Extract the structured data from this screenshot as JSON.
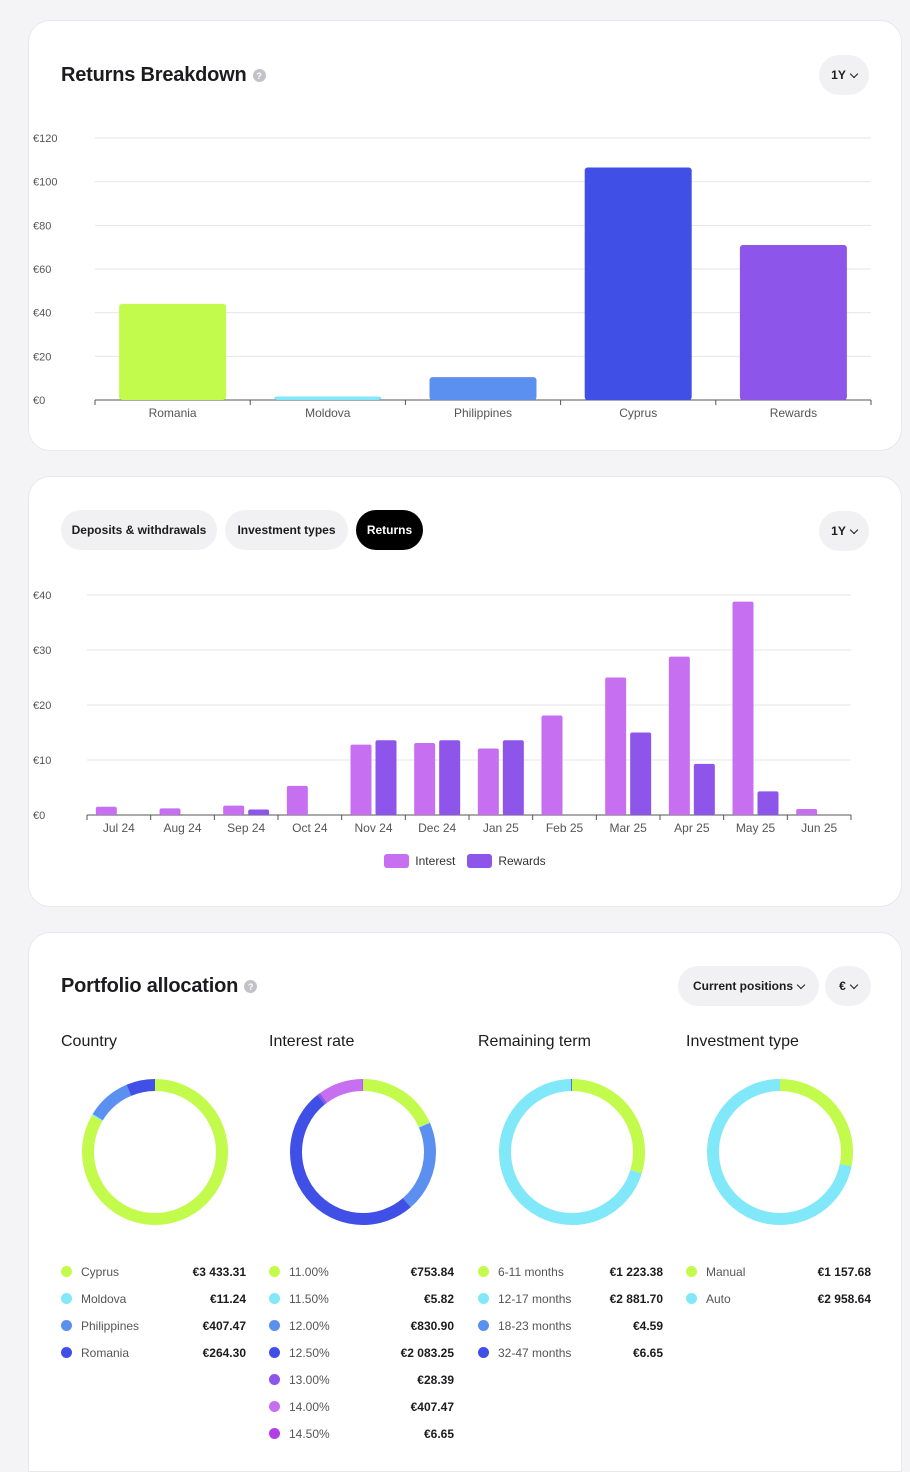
{
  "returns_breakdown": {
    "title": "Returns Breakdown",
    "help": "?",
    "period": "1Y",
    "chart_data": {
      "type": "bar",
      "categories": [
        "Romania",
        "Moldova",
        "Philippines",
        "Cyprus",
        "Rewards"
      ],
      "values": [
        44,
        1.6,
        10.5,
        106.5,
        71
      ],
      "colors": [
        "#c2fb4b",
        "#80e8f8",
        "#5b8ff0",
        "#404fe6",
        "#8d55ea"
      ],
      "yticks": [
        "€0",
        "€20",
        "€40",
        "€60",
        "€80",
        "€100",
        "€120"
      ],
      "ylim": [
        0,
        120
      ]
    }
  },
  "history": {
    "tabs": [
      "Deposits & withdrawals",
      "Investment types",
      "Returns"
    ],
    "active_tab": "Returns",
    "period": "1Y",
    "chart_data": {
      "type": "bar",
      "categories": [
        "Jul 24",
        "Aug 24",
        "Sep 24",
        "Oct 24",
        "Nov 24",
        "Dec 24",
        "Jan 25",
        "Feb 25",
        "Mar 25",
        "Apr 25",
        "May 25",
        "Jun 25"
      ],
      "series": [
        {
          "name": "Interest",
          "color": "#c66ff0",
          "values": [
            1.5,
            1.2,
            1.7,
            5.3,
            12.8,
            13.1,
            12.1,
            18.1,
            25,
            28.8,
            38.8,
            1.1
          ]
        },
        {
          "name": "Rewards",
          "color": "#8d55ea",
          "values": [
            0,
            0,
            1,
            0,
            13.6,
            13.6,
            13.6,
            0,
            15,
            9.3,
            4.3,
            0
          ]
        }
      ],
      "yticks": [
        "€0",
        "€10",
        "€20",
        "€30",
        "€40"
      ],
      "ylim": [
        0,
        40
      ]
    }
  },
  "allocation": {
    "title": "Portfolio allocation",
    "help": "?",
    "positions_label": "Current positions",
    "currency": "€",
    "columns": [
      {
        "title": "Country",
        "items": [
          {
            "label": "Cyprus",
            "value": "€3 433.31",
            "amount": 3433.31,
            "color": "#c2fb4b"
          },
          {
            "label": "Moldova",
            "value": "€11.24",
            "amount": 11.24,
            "color": "#80e8f8"
          },
          {
            "label": "Philippines",
            "value": "€407.47",
            "amount": 407.47,
            "color": "#5b8ff0"
          },
          {
            "label": "Romania",
            "value": "€264.30",
            "amount": 264.3,
            "color": "#404fe6"
          }
        ]
      },
      {
        "title": "Interest rate",
        "items": [
          {
            "label": "11.00%",
            "value": "€753.84",
            "amount": 753.84,
            "color": "#c2fb4b"
          },
          {
            "label": "11.50%",
            "value": "€5.82",
            "amount": 5.82,
            "color": "#80e8f8"
          },
          {
            "label": "12.00%",
            "value": "€830.90",
            "amount": 830.9,
            "color": "#5b8ff0"
          },
          {
            "label": "12.50%",
            "value": "€2 083.25",
            "amount": 2083.25,
            "color": "#404fe6"
          },
          {
            "label": "13.00%",
            "value": "€28.39",
            "amount": 28.39,
            "color": "#8d55ea"
          },
          {
            "label": "14.00%",
            "value": "€407.47",
            "amount": 407.47,
            "color": "#c66ff0"
          },
          {
            "label": "14.50%",
            "value": "€6.65",
            "amount": 6.65,
            "color": "#b43ee6"
          }
        ]
      },
      {
        "title": "Remaining term",
        "items": [
          {
            "label": "6-11 months",
            "value": "€1 223.38",
            "amount": 1223.38,
            "color": "#c2fb4b"
          },
          {
            "label": "12-17 months",
            "value": "€2 881.70",
            "amount": 2881.7,
            "color": "#80e8f8"
          },
          {
            "label": "18-23 months",
            "value": "€4.59",
            "amount": 4.59,
            "color": "#5b8ff0"
          },
          {
            "label": "32-47 months",
            "value": "€6.65",
            "amount": 6.65,
            "color": "#404fe6"
          }
        ]
      },
      {
        "title": "Investment type",
        "items": [
          {
            "label": "Manual",
            "value": "€1 157.68",
            "amount": 1157.68,
            "color": "#c2fb4b"
          },
          {
            "label": "Auto",
            "value": "€2 958.64",
            "amount": 2958.64,
            "color": "#80e8f8"
          }
        ]
      }
    ]
  }
}
